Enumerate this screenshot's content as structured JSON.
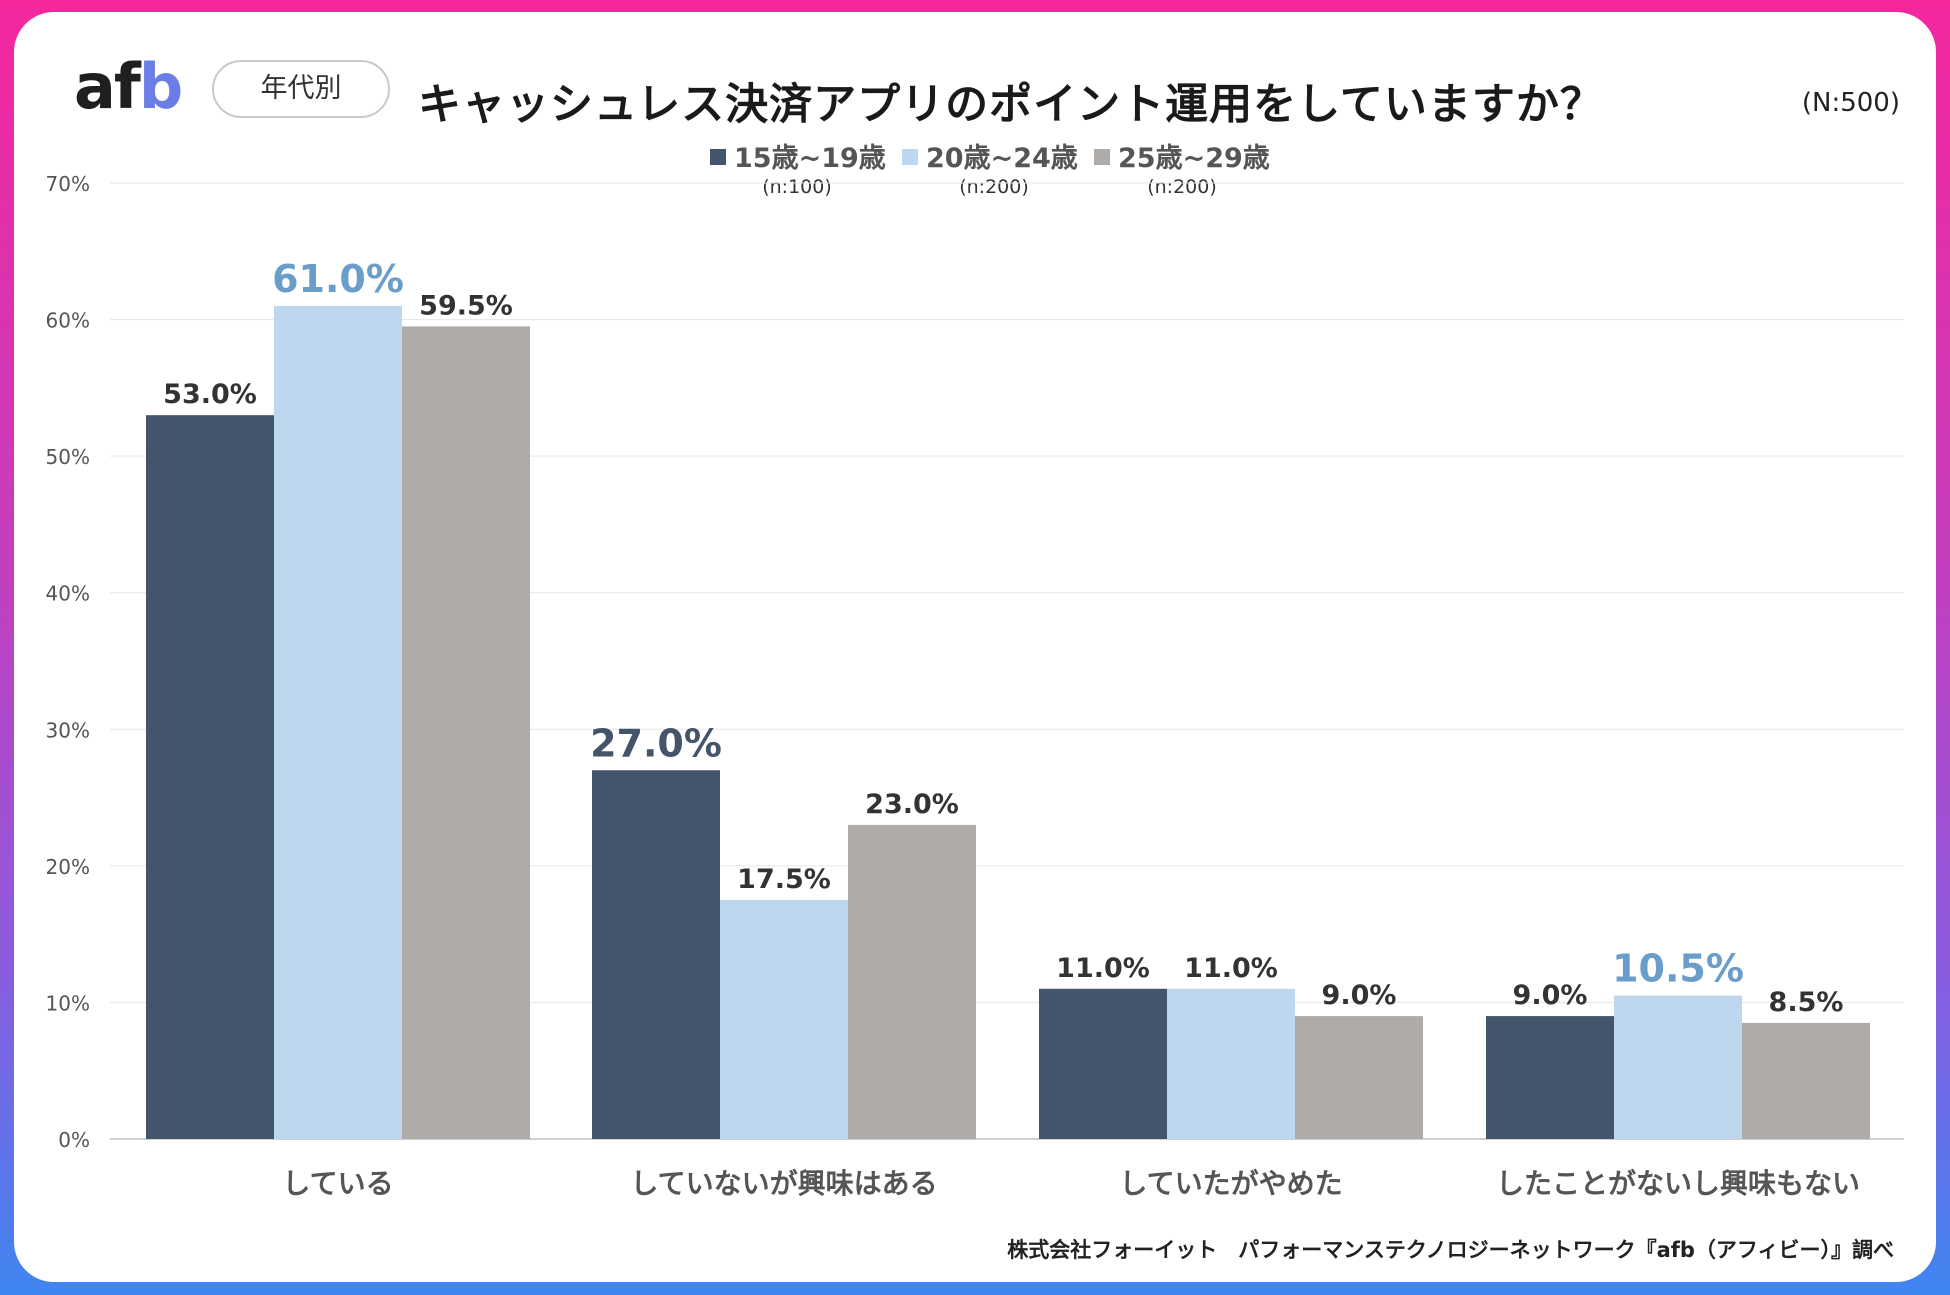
{
  "header": {
    "logo_text_a": "af",
    "logo_text_b": "b",
    "segment_label": "年代別",
    "title": "キャッシュレス決済アプリのポイント運用をしていますか？",
    "total_n": "(N:500)"
  },
  "colors": {
    "series1": "#44546a",
    "series2": "#bdd7ee",
    "series3": "#afaba8",
    "highlight_dark": "#44546a",
    "highlight_light": "#6b9dcb",
    "label_default": "#333333"
  },
  "legend": [
    {
      "label": "15歳~19歳",
      "n": "(n:100)"
    },
    {
      "label": "20歳~24歳",
      "n": "(n:200)"
    },
    {
      "label": "25歳~29歳",
      "n": "(n:200)"
    }
  ],
  "chart_data": {
    "type": "bar",
    "title": "キャッシュレス決済アプリのポイント運用をしていますか？",
    "categories": [
      "している",
      "していないが興味はある",
      "していたがやめた",
      "したことがないし興味もない"
    ],
    "series": [
      {
        "name": "15歳~19歳",
        "values": [
          53.0,
          27.0,
          11.0,
          9.0
        ],
        "labels": [
          "53.0%",
          "27.0%",
          "11.0%",
          "9.0%"
        ]
      },
      {
        "name": "20歳~24歳",
        "values": [
          61.0,
          17.5,
          11.0,
          10.5
        ],
        "labels": [
          "61.0%",
          "17.5%",
          "11.0%",
          "10.5%"
        ]
      },
      {
        "name": "25歳~29歳",
        "values": [
          59.5,
          23.0,
          9.0,
          8.5
        ],
        "labels": [
          "59.5%",
          "23.0%",
          "9.0%",
          "8.5%"
        ]
      }
    ],
    "highlights": [
      {
        "category_index": 0,
        "series_index": 1
      },
      {
        "category_index": 1,
        "series_index": 0
      },
      {
        "category_index": 3,
        "series_index": 1
      }
    ],
    "yticks": [
      "0%",
      "10%",
      "20%",
      "30%",
      "40%",
      "50%",
      "60%",
      "70%"
    ],
    "ylim": [
      0,
      70
    ],
    "xlabel": "",
    "ylabel": "",
    "grid": true,
    "legend_position": "top-center"
  },
  "footer": {
    "source": "株式会社フォーイット　パフォーマンステクノロジーネットワーク『afb（アフィビー）』調べ"
  }
}
